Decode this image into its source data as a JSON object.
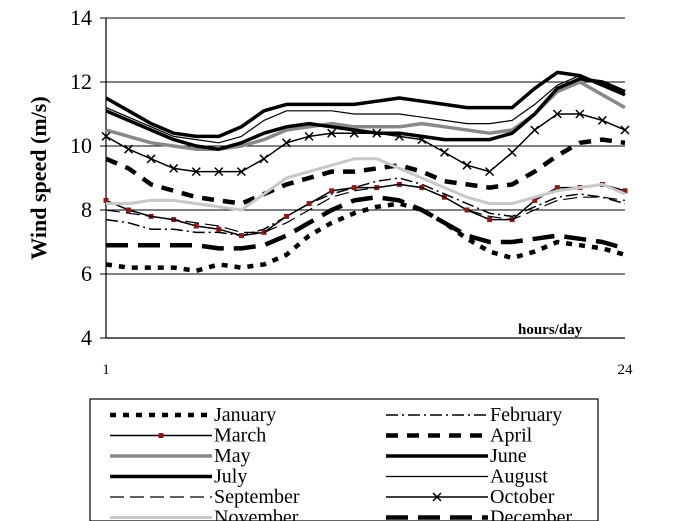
{
  "chart_data": {
    "type": "line",
    "ylabel": "Wind speed (m/s)",
    "xlabel": "hours/day",
    "ylim": [
      4,
      14
    ],
    "yticks": [
      "4",
      "6",
      "8",
      "10",
      "12",
      "14"
    ],
    "xlim": [
      1,
      24
    ],
    "xticks": [
      "1",
      "24"
    ],
    "grid": "horizontal",
    "legend_position": "bottom",
    "series": [
      {
        "name": "January",
        "color": "#000000",
        "style": "dotted-thick",
        "values": [
          6.3,
          6.2,
          6.2,
          6.2,
          6.1,
          6.3,
          6.2,
          6.3,
          6.6,
          7.2,
          7.6,
          7.9,
          8.1,
          8.2,
          8.0,
          7.6,
          7.1,
          6.7,
          6.5,
          6.7,
          7.0,
          6.9,
          6.8,
          6.6
        ]
      },
      {
        "name": "February",
        "color": "#000000",
        "style": "dash-dot",
        "values": [
          7.7,
          7.6,
          7.4,
          7.4,
          7.3,
          7.3,
          7.2,
          7.4,
          7.8,
          8.2,
          8.5,
          8.7,
          8.9,
          9.0,
          8.8,
          8.5,
          8.2,
          7.9,
          7.8,
          8.1,
          8.4,
          8.5,
          8.4,
          8.2
        ]
      },
      {
        "name": "March",
        "color": "#000000",
        "style": "solid-red-markers",
        "values": [
          8.3,
          8.0,
          7.8,
          7.7,
          7.5,
          7.4,
          7.2,
          7.3,
          7.8,
          8.2,
          8.6,
          8.7,
          8.7,
          8.8,
          8.7,
          8.4,
          8.0,
          7.7,
          7.7,
          8.3,
          8.7,
          8.7,
          8.8,
          8.6
        ]
      },
      {
        "name": "April",
        "color": "#000000",
        "style": "dashed-thick",
        "values": [
          9.6,
          9.3,
          8.8,
          8.6,
          8.4,
          8.3,
          8.2,
          8.5,
          8.8,
          9.0,
          9.2,
          9.2,
          9.3,
          9.4,
          9.2,
          8.9,
          8.8,
          8.7,
          8.8,
          9.2,
          9.7,
          10.1,
          10.2,
          10.1
        ]
      },
      {
        "name": "May",
        "color": "#888888",
        "style": "solid-thick",
        "values": [
          10.5,
          10.3,
          10.1,
          10.0,
          9.9,
          9.9,
          10.0,
          10.2,
          10.5,
          10.6,
          10.7,
          10.6,
          10.6,
          10.6,
          10.7,
          10.6,
          10.5,
          10.4,
          10.5,
          11.0,
          11.7,
          12.0,
          11.6,
          11.2
        ]
      },
      {
        "name": "June",
        "color": "#000000",
        "style": "solid-thick",
        "values": [
          11.5,
          11.1,
          10.7,
          10.4,
          10.3,
          10.3,
          10.6,
          11.1,
          11.3,
          11.3,
          11.3,
          11.3,
          11.4,
          11.5,
          11.4,
          11.3,
          11.2,
          11.2,
          11.2,
          11.8,
          12.3,
          12.2,
          11.9,
          11.6
        ]
      },
      {
        "name": "July",
        "color": "#000000",
        "style": "solid-thick",
        "values": [
          11.1,
          10.8,
          10.5,
          10.2,
          10.0,
          9.9,
          10.1,
          10.4,
          10.6,
          10.7,
          10.6,
          10.5,
          10.4,
          10.4,
          10.3,
          10.2,
          10.2,
          10.2,
          10.4,
          11.0,
          11.8,
          12.1,
          12.0,
          11.7
        ]
      },
      {
        "name": "August",
        "color": "#000000",
        "style": "solid-thin",
        "values": [
          11.2,
          10.9,
          10.6,
          10.3,
          10.2,
          10.1,
          10.3,
          10.8,
          11.1,
          11.1,
          11.1,
          11.0,
          11.0,
          11.0,
          10.9,
          10.8,
          10.7,
          10.7,
          10.8,
          11.3,
          11.9,
          12.2,
          11.9,
          11.6
        ]
      },
      {
        "name": "September",
        "color": "#000000",
        "style": "long-dash-thin",
        "values": [
          8.0,
          7.9,
          7.8,
          7.7,
          7.6,
          7.5,
          7.3,
          7.3,
          7.6,
          8.0,
          8.4,
          8.6,
          8.7,
          8.8,
          8.7,
          8.4,
          8.0,
          7.8,
          7.7,
          8.0,
          8.3,
          8.4,
          8.4,
          8.3
        ]
      },
      {
        "name": "October",
        "color": "#000000",
        "style": "solid-x-markers",
        "values": [
          10.3,
          9.9,
          9.6,
          9.3,
          9.2,
          9.2,
          9.2,
          9.6,
          10.1,
          10.3,
          10.4,
          10.4,
          10.4,
          10.3,
          10.2,
          9.8,
          9.4,
          9.2,
          9.8,
          10.5,
          11.0,
          11.0,
          10.8,
          10.5
        ]
      },
      {
        "name": "November",
        "color": "#c8c8c8",
        "style": "solid-light",
        "values": [
          8.2,
          8.2,
          8.3,
          8.3,
          8.2,
          8.1,
          8.0,
          8.5,
          9.0,
          9.2,
          9.4,
          9.6,
          9.6,
          9.3,
          9.0,
          8.7,
          8.4,
          8.2,
          8.2,
          8.4,
          8.6,
          8.7,
          8.8,
          8.5
        ]
      },
      {
        "name": "December",
        "color": "#000000",
        "style": "long-dash-thick",
        "values": [
          6.9,
          6.9,
          6.9,
          6.9,
          6.9,
          6.8,
          6.8,
          6.9,
          7.2,
          7.6,
          8.0,
          8.3,
          8.4,
          8.3,
          8.0,
          7.6,
          7.2,
          7.0,
          7.0,
          7.1,
          7.2,
          7.1,
          7.0,
          6.8
        ]
      }
    ]
  }
}
